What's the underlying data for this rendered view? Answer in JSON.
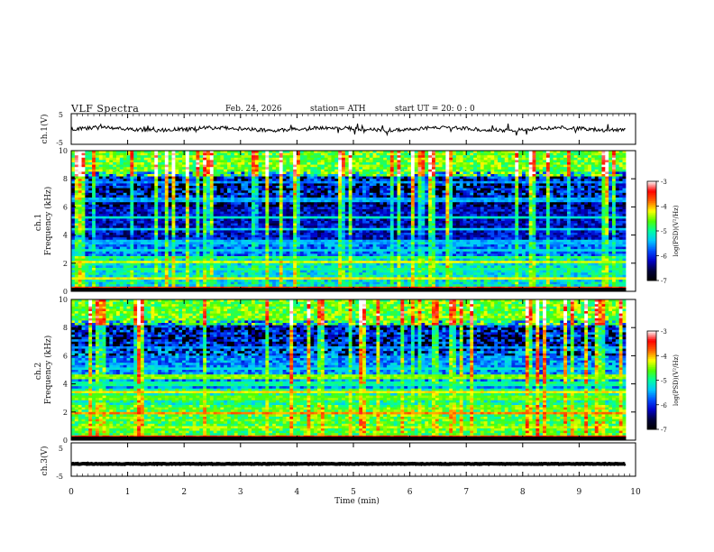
{
  "header": {
    "title": "VLF Spectra",
    "date": "Feb. 24, 2026",
    "station": "station= ATH",
    "start": "start UT = 20: 0 : 0"
  },
  "colors": {
    "ramp": [
      "#000000",
      "#00003c",
      "#0000c8",
      "#0050ff",
      "#00c8ff",
      "#00ffa0",
      "#50ff00",
      "#ffff00",
      "#ff6400",
      "#ff0000",
      "#ffffff"
    ]
  },
  "chart_data": [
    {
      "id": "ch1-voltage",
      "type": "line",
      "ylabel": "ch.1(V)",
      "ylim": [
        -5,
        5
      ],
      "yticks": [
        "5",
        "-5"
      ],
      "xlim": [
        0,
        10
      ],
      "baseline": 0,
      "noise": 0.6,
      "note": "broadband time series, level near 0 V"
    },
    {
      "id": "ch1-spectrogram",
      "type": "heatmap",
      "ylabel": "ch.1\nFrequency (kHz)",
      "xlim": [
        0,
        9.83
      ],
      "ylim": [
        0,
        10
      ],
      "yticks": [
        "0",
        "2",
        "4",
        "6",
        "8",
        "10"
      ],
      "colorbar": {
        "label": "log(PSD)(V²/Hz)",
        "ticks": [
          "-3",
          "-4",
          "-5",
          "-6",
          "-7"
        ],
        "range": [
          -7,
          -3
        ]
      },
      "lines": [
        {
          "f": 0.3,
          "v": -3.6
        },
        {
          "f": 0.9,
          "v": -4.2
        },
        {
          "f": 1.6,
          "v": -5.0
        },
        {
          "f": 2.05,
          "v": -4.3
        },
        {
          "f": 2.45,
          "v": -4.9
        },
        {
          "f": 2.9,
          "v": -5.3
        },
        {
          "f": 3.5,
          "v": -5.5
        },
        {
          "f": 4.4,
          "v": -5.4
        },
        {
          "f": 5.2,
          "v": -5.2
        },
        {
          "f": 6.5,
          "v": -5.5
        },
        {
          "f": 7.7,
          "v": -5.6
        }
      ]
    },
    {
      "id": "ch2-spectrogram",
      "type": "heatmap",
      "ylabel": "ch.2\nFrequency (kHz)",
      "xlim": [
        0,
        9.83
      ],
      "ylim": [
        0,
        10
      ],
      "yticks": [
        "0",
        "2",
        "4",
        "6",
        "8",
        "10"
      ],
      "colorbar": {
        "label": "log(PSD)(V²/Hz)",
        "ticks": [
          "-3",
          "-4",
          "-5",
          "-6",
          "-7"
        ],
        "range": [
          -7,
          -3
        ]
      },
      "lines": [
        {
          "f": 0.3,
          "v": -3.6
        },
        {
          "f": 0.9,
          "v": -4.4
        },
        {
          "f": 1.4,
          "v": -4.8
        },
        {
          "f": 1.95,
          "v": -3.9
        },
        {
          "f": 2.3,
          "v": -4.7
        },
        {
          "f": 3.0,
          "v": -4.6
        },
        {
          "f": 3.4,
          "v": -4.2
        },
        {
          "f": 4.0,
          "v": -5.0
        },
        {
          "f": 4.5,
          "v": -4.5
        },
        {
          "f": 5.1,
          "v": -5.2
        },
        {
          "f": 6.6,
          "v": -5.6
        }
      ]
    },
    {
      "id": "ch3-voltage",
      "type": "line",
      "ylabel": "ch.3(V)",
      "ylim": [
        -5,
        5
      ],
      "yticks": [
        "5",
        "-5"
      ],
      "xlim": [
        0,
        10
      ],
      "baseline": -1.3,
      "noise": 0.1,
      "note": "flat trace near -1.3 V"
    }
  ],
  "xaxis": {
    "label": "Time (min)",
    "ticks": [
      "0",
      "1",
      "2",
      "3",
      "4",
      "5",
      "6",
      "7",
      "8",
      "9",
      "10"
    ],
    "range": [
      0,
      10
    ]
  }
}
